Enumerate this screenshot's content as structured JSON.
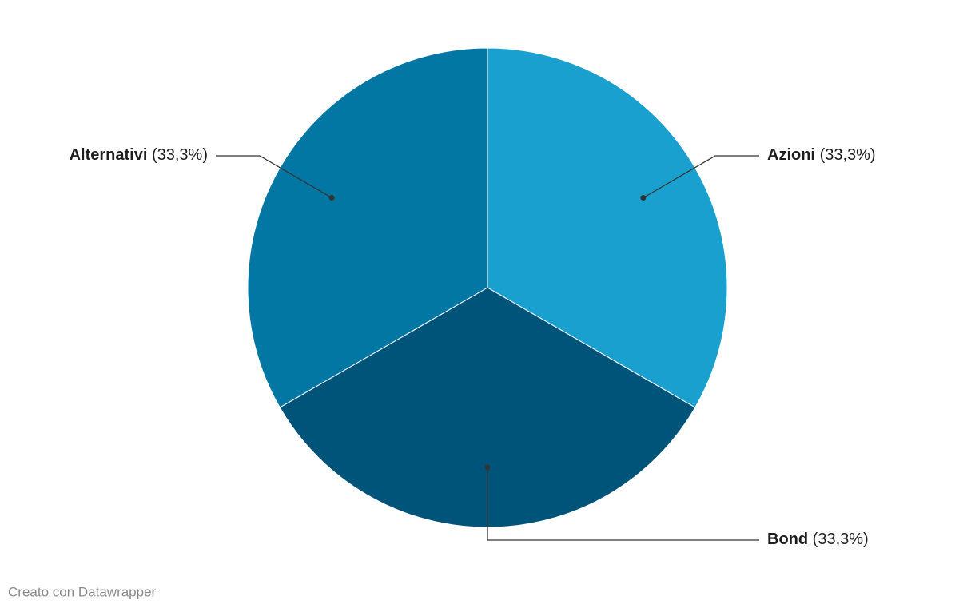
{
  "chart_data": {
    "type": "pie",
    "categories": [
      "Azioni",
      "Bond",
      "Alternativi"
    ],
    "values": [
      33.3,
      33.3,
      33.3
    ],
    "value_labels": [
      "(33,3%)",
      "(33,3%)",
      "(33,3%)"
    ],
    "colors": [
      "#1aa0ce",
      "#015479",
      "#0277a3"
    ],
    "footer": "Creato con Datawrapper"
  }
}
